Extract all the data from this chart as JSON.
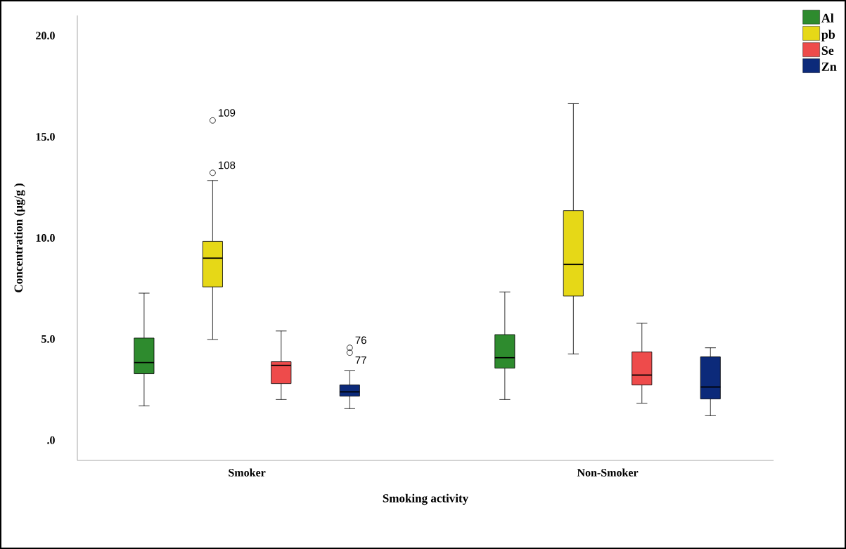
{
  "chart_data": {
    "type": "box",
    "xlabel": "Smoking activity",
    "ylabel": "Concentration (µg/g )",
    "categories": [
      "Smoker",
      "Non-Smoker"
    ],
    "ylim": [
      -1,
      21
    ],
    "yticks": [
      {
        "value": 0,
        "label": ".0"
      },
      {
        "value": 5,
        "label": "5.0"
      },
      {
        "value": 10,
        "label": "10.0"
      },
      {
        "value": 15,
        "label": "15.0"
      },
      {
        "value": 20,
        "label": "20.0"
      }
    ],
    "legend": "top right",
    "grid": false,
    "series": [
      {
        "name": "Al",
        "color": "#2e8b2e",
        "boxes": [
          {
            "low": 1.7,
            "q1": 3.29,
            "median": 3.84,
            "q3": 5.05,
            "high": 7.27
          },
          {
            "low": 2.01,
            "q1": 3.56,
            "median": 4.08,
            "q3": 5.22,
            "high": 7.33
          }
        ]
      },
      {
        "name": "pb",
        "color": "#e6d817",
        "boxes": [
          {
            "low": 4.98,
            "q1": 7.58,
            "median": 9.0,
            "q3": 9.83,
            "high": 12.84,
            "outliers": [
              15.81,
              13.22
            ]
          },
          {
            "low": 4.26,
            "q1": 7.13,
            "median": 8.69,
            "q3": 11.35,
            "high": 16.64
          }
        ]
      },
      {
        "name": "Se",
        "color": "#ee4b4b",
        "boxes": [
          {
            "low": 2.01,
            "q1": 2.8,
            "median": 3.7,
            "q3": 3.88,
            "high": 5.4
          },
          {
            "low": 1.83,
            "q1": 2.73,
            "median": 3.22,
            "q3": 4.36,
            "high": 5.78
          }
        ]
      },
      {
        "name": "Zn",
        "color": "#0c2a7a",
        "boxes": [
          {
            "low": 1.56,
            "q1": 2.18,
            "median": 2.39,
            "q3": 2.73,
            "high": 3.43,
            "outliers": [
              4.57,
              4.33
            ]
          },
          {
            "low": 1.21,
            "q1": 2.04,
            "median": 2.63,
            "q3": 4.12,
            "high": 4.57
          }
        ]
      }
    ],
    "annotations": [
      "109",
      "108",
      "76",
      "77"
    ]
  }
}
